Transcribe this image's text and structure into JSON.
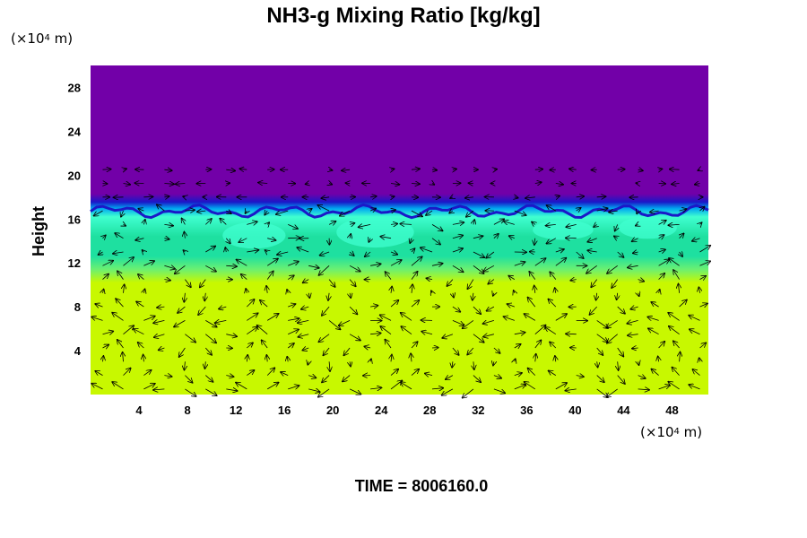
{
  "title": "NH3-g Mixing Ratio [kg/kg]",
  "y_unit": {
    "prefix": "(×10",
    "exp": "4",
    "suffix": " m)"
  },
  "x_unit": {
    "prefix": "(×10",
    "exp": "4",
    "suffix": " m)"
  },
  "time_label": "TIME = 8006160.0",
  "colors": {
    "upper": "#7200a8",
    "band_dark": "#1a18c8",
    "band_mid": "#00a8f0",
    "band_light": "#40ffd0",
    "middle": "#1ee0a0",
    "transition": "#6cf070",
    "lower": "#c8f800",
    "arrow": "#000000"
  },
  "chart_data": {
    "type": "heatmap",
    "title": "NH3-g Mixing Ratio [kg/kg]",
    "xlabel": "",
    "ylabel": "Height",
    "xlim": [
      0,
      51
    ],
    "ylim": [
      0,
      30
    ],
    "xticks": [
      4,
      8,
      12,
      16,
      20,
      24,
      28,
      32,
      36,
      40,
      44,
      48
    ],
    "yticks": [
      4,
      8,
      12,
      16,
      20,
      24,
      28
    ],
    "grid": false,
    "regions": [
      {
        "from": 0,
        "to": 10,
        "level": "high"
      },
      {
        "from": 10,
        "to": 13,
        "level": "transition"
      },
      {
        "from": 13,
        "to": 16.5,
        "level": "mid"
      },
      {
        "from": 16.5,
        "to": 17.5,
        "level": "low"
      },
      {
        "from": 17.5,
        "to": 30,
        "level": "minimum"
      }
    ],
    "overlay": "wind vectors"
  }
}
